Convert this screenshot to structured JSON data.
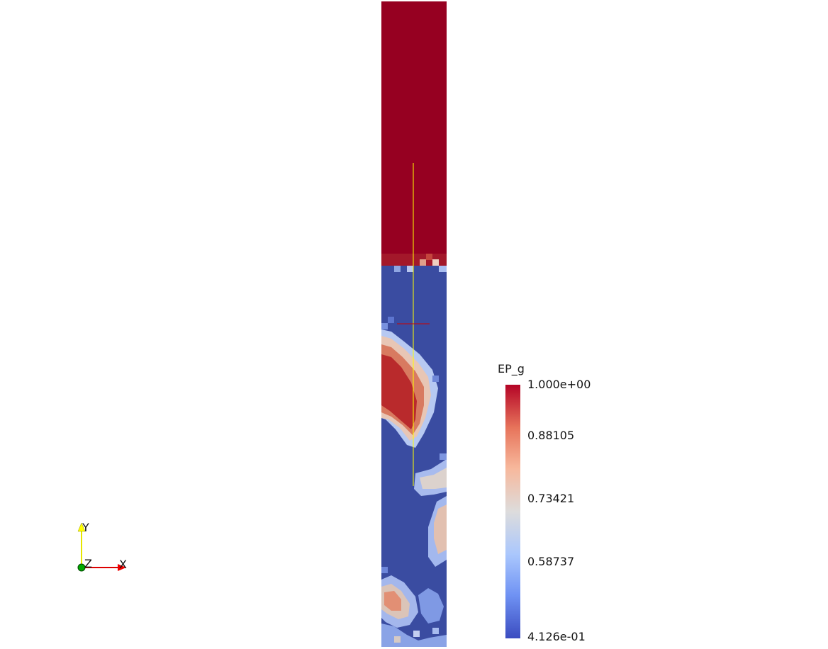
{
  "scalar_bar": {
    "title": "EP_g",
    "labels": [
      "1.000e+00",
      "0.88105",
      "0.73421",
      "0.58737",
      "4.126e-01"
    ],
    "colormap": [
      "#3b4cc0",
      "#6f92f3",
      "#aac7fd",
      "#dddcdc",
      "#f7b89c",
      "#e7745b",
      "#b40426"
    ]
  },
  "orientation_axes": {
    "x": "X",
    "y": "Y",
    "z": "Z"
  },
  "colors": {
    "high": "#960021",
    "low": "#3a4ca1",
    "probe_line": "#ffff00",
    "probe_marker": "#cc0000"
  }
}
